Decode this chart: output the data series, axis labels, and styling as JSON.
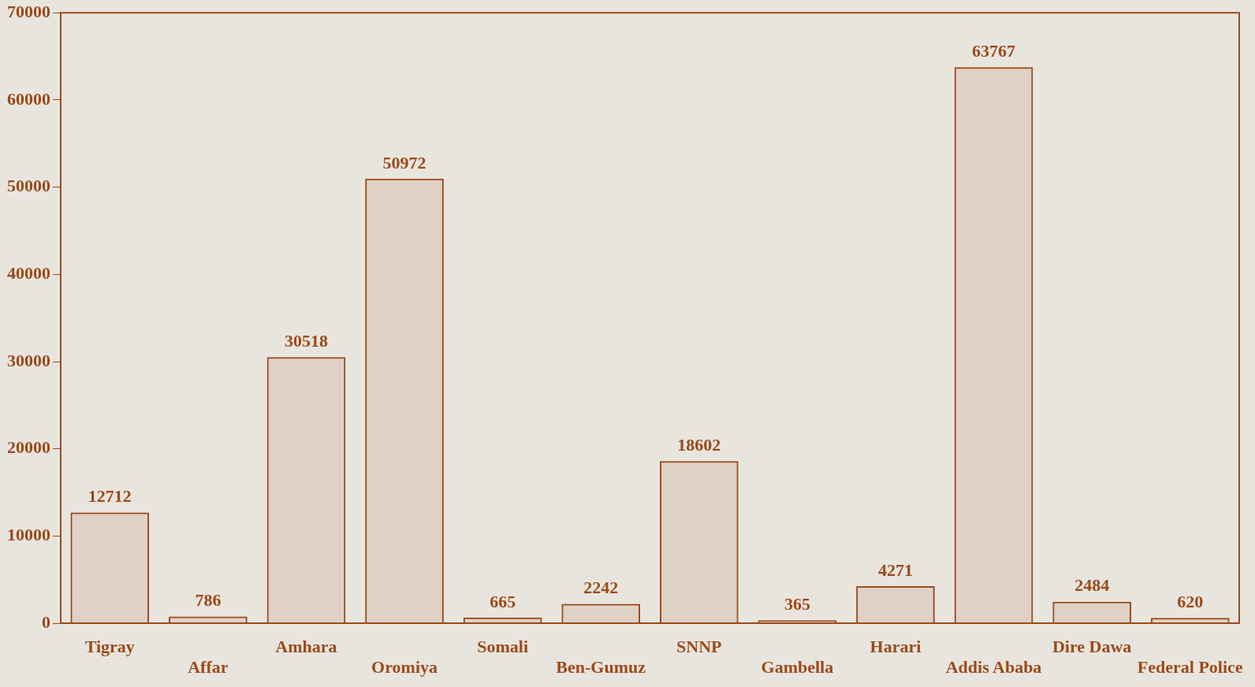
{
  "chart_data": {
    "type": "bar",
    "categories": [
      "Tigray",
      "Affar",
      "Amhara",
      "Oromiya",
      "Somali",
      "Ben-Gumuz",
      "SNNP",
      "Gambella",
      "Harari",
      "Addis Ababa",
      "Dire Dawa",
      "Federal Police"
    ],
    "values": [
      12712,
      786,
      30518,
      50972,
      665,
      2242,
      18602,
      365,
      4271,
      63767,
      2484,
      620
    ],
    "color": "#9c4a1a",
    "ylim": [
      0,
      70000
    ],
    "yticks": [
      0,
      10000,
      20000,
      30000,
      40000,
      50000,
      60000,
      70000
    ],
    "grid": false,
    "legend": false,
    "data_labels": true
  }
}
